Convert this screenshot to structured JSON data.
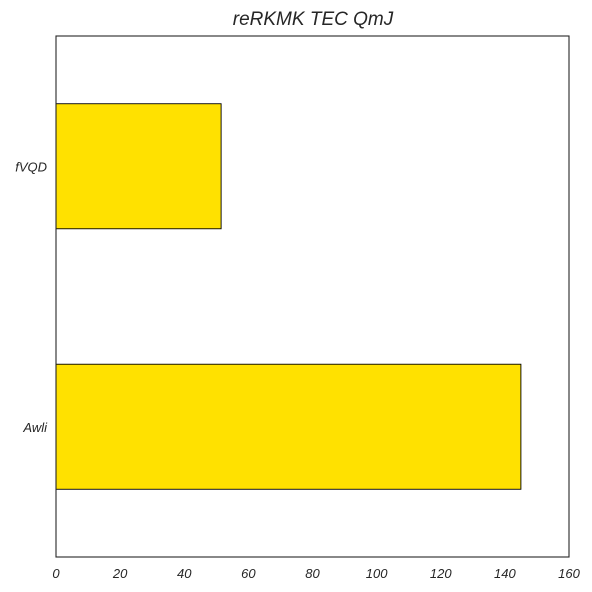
{
  "chart_data": {
    "type": "bar",
    "orientation": "horizontal",
    "title": "reRKMK TEC QmJ",
    "xlabel": "",
    "ylabel": "",
    "categories": [
      "fVQD",
      "Awli"
    ],
    "values": [
      51.5,
      145
    ],
    "xlim": [
      0,
      160
    ],
    "xticks": [
      "0",
      "20",
      "40",
      "60",
      "80",
      "100",
      "120",
      "140",
      "160"
    ],
    "grid": false,
    "legend": "none",
    "colors": {
      "bar": "#FFE100",
      "bar_edge": "#000000",
      "axes": "#262626"
    }
  }
}
